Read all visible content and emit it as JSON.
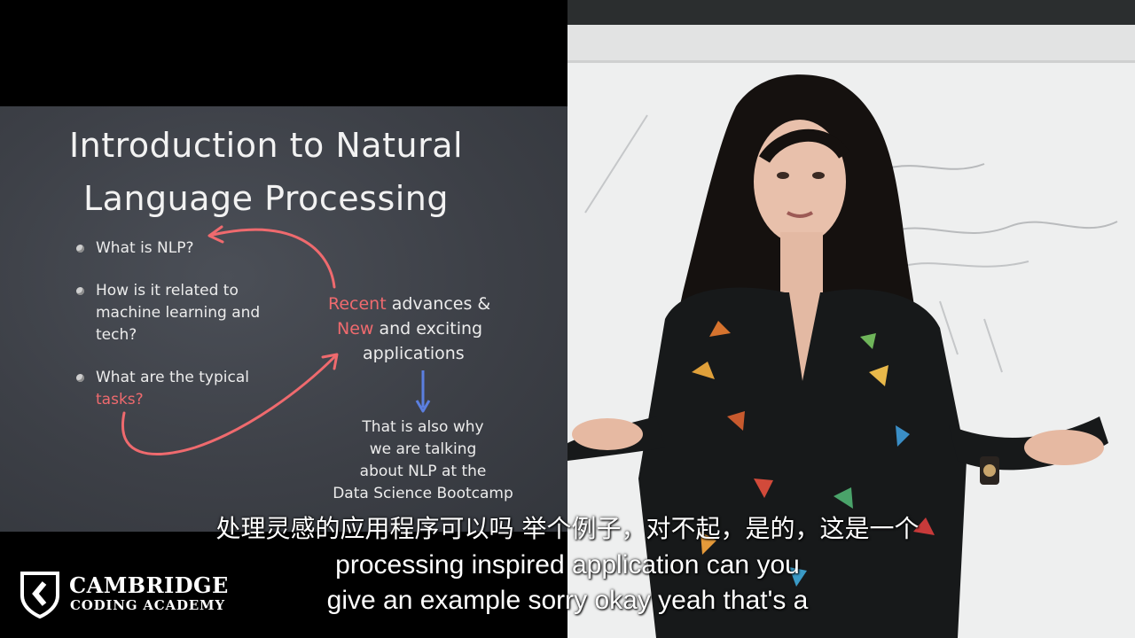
{
  "slide": {
    "title_line1": "Introduction to Natural",
    "title_line2": "Language Processing",
    "bullets": [
      {
        "lines": [
          "What is NLP?"
        ]
      },
      {
        "lines": [
          "How is it related to",
          "machine learning and",
          "tech?"
        ]
      },
      {
        "lines": [
          "What are the typical"
        ],
        "red_line": "tasks?"
      }
    ],
    "center": {
      "red1": "Recent",
      "rest1": " advances &",
      "red2": "New",
      "rest2": " and exciting",
      "line3": "applications"
    },
    "bottom_lines": [
      "That is also why",
      "we are talking",
      "about NLP at the",
      "Data Science Bootcamp"
    ],
    "colors": {
      "accent_red": "#ef6a6e",
      "arrow_blue": "#5b7fe0",
      "chalkboard": "#3d4047"
    }
  },
  "logo": {
    "line1": "CAMBRIDGE",
    "line2": "CODING ACADEMY",
    "icon": "shield-chevron-icon"
  },
  "subtitles": {
    "zh": "处理灵感的应用程序可以吗 举个例子，对不起，是的，这是一个",
    "en_line1": "processing inspired application can you",
    "en_line2": "give an example sorry okay yeah that's a"
  }
}
